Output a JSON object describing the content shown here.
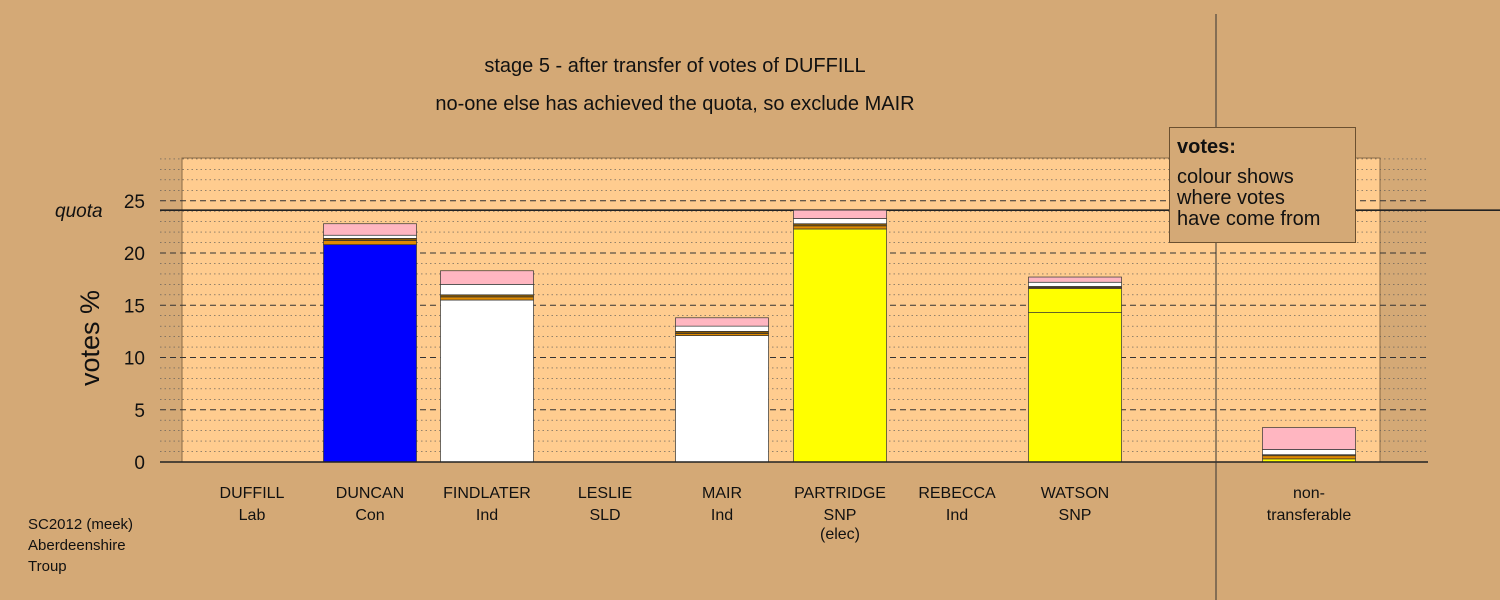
{
  "title_lines": [
    "stage 5 - after transfer of votes of DUFFILL",
    "no-one else has achieved the quota, so exclude MAIR"
  ],
  "legend": {
    "heading": "votes:",
    "lines": [
      "colour shows",
      "where votes",
      "have come from"
    ]
  },
  "footer": [
    "SC2012 (meek)",
    "Aberdeenshire",
    "Troup"
  ],
  "colors": {
    "background": "#d4a976",
    "plot_area": "#ffcc8f",
    "Con": "#0000ff",
    "Ind": "#ffffff",
    "SNP": "#ffff00",
    "Lab_transfer": "#ffb6c1",
    "transfer_orange": "#e08a00",
    "transfer_brown": "#8b5a00"
  },
  "chart_data": {
    "type": "bar",
    "stacked": true,
    "ylabel": "votes %",
    "yticks": [
      0,
      5,
      10,
      15,
      20,
      25
    ],
    "ylim": [
      0,
      29
    ],
    "quota_label": "quota",
    "quota": 24.1,
    "grid": "dashed major lines every 5, dotted minor lines every 1",
    "categories": [
      {
        "name": "DUFFILL",
        "party": "Lab",
        "note": "",
        "segments": []
      },
      {
        "name": "DUNCAN",
        "party": "Con",
        "note": "",
        "segments": [
          {
            "value": 20.8,
            "color": "#0000ff"
          },
          {
            "value": 0.4,
            "color": "#e08a00"
          },
          {
            "value": 0.2,
            "color": "#8b5a00"
          },
          {
            "value": 0.3,
            "color": "#ffffff"
          },
          {
            "value": 1.1,
            "color": "#ffb6c1"
          }
        ]
      },
      {
        "name": "FINDLATER",
        "party": "Ind",
        "note": "",
        "segments": [
          {
            "value": 15.5,
            "color": "#ffffff"
          },
          {
            "value": 0.3,
            "color": "#e08a00"
          },
          {
            "value": 0.2,
            "color": "#8b5a00"
          },
          {
            "value": 1.0,
            "color": "#ffffff"
          },
          {
            "value": 1.3,
            "color": "#ffb6c1"
          }
        ]
      },
      {
        "name": "LESLIE",
        "party": "SLD",
        "note": "",
        "segments": []
      },
      {
        "name": "MAIR",
        "party": "Ind",
        "note": "",
        "segments": [
          {
            "value": 12.1,
            "color": "#ffffff"
          },
          {
            "value": 0.2,
            "color": "#e08a00"
          },
          {
            "value": 0.2,
            "color": "#8b5a00"
          },
          {
            "value": 0.5,
            "color": "#ffffff"
          },
          {
            "value": 0.8,
            "color": "#ffb6c1"
          }
        ]
      },
      {
        "name": "PARTRIDGE",
        "party": "SNP",
        "note": "(elec)",
        "segments": [
          {
            "value": 22.3,
            "color": "#ffff00"
          },
          {
            "value": 0.3,
            "color": "#e08a00"
          },
          {
            "value": 0.2,
            "color": "#8b5a00"
          },
          {
            "value": 0.5,
            "color": "#ffffff"
          },
          {
            "value": 0.8,
            "color": "#ffb6c1"
          }
        ]
      },
      {
        "name": "REBECCA",
        "party": "Ind",
        "note": "",
        "segments": []
      },
      {
        "name": "WATSON",
        "party": "SNP",
        "note": "",
        "segments": [
          {
            "value": 14.3,
            "color": "#ffff00"
          },
          {
            "value": 2.3,
            "color": "#ffff00"
          },
          {
            "value": 0.1,
            "color": "#e08a00"
          },
          {
            "value": 0.1,
            "color": "#8b5a00"
          },
          {
            "value": 0.4,
            "color": "#ffffff"
          },
          {
            "value": 0.5,
            "color": "#ffb6c1"
          }
        ]
      },
      {
        "name": "non-",
        "party": "transferable",
        "note": "",
        "segments": [
          {
            "value": 0.3,
            "color": "#ffff00"
          },
          {
            "value": 0.3,
            "color": "#e08a00"
          },
          {
            "value": 0.1,
            "color": "#8b5a00"
          },
          {
            "value": 0.5,
            "color": "#ffffff"
          },
          {
            "value": 2.1,
            "color": "#ffb6c1"
          }
        ]
      }
    ]
  }
}
